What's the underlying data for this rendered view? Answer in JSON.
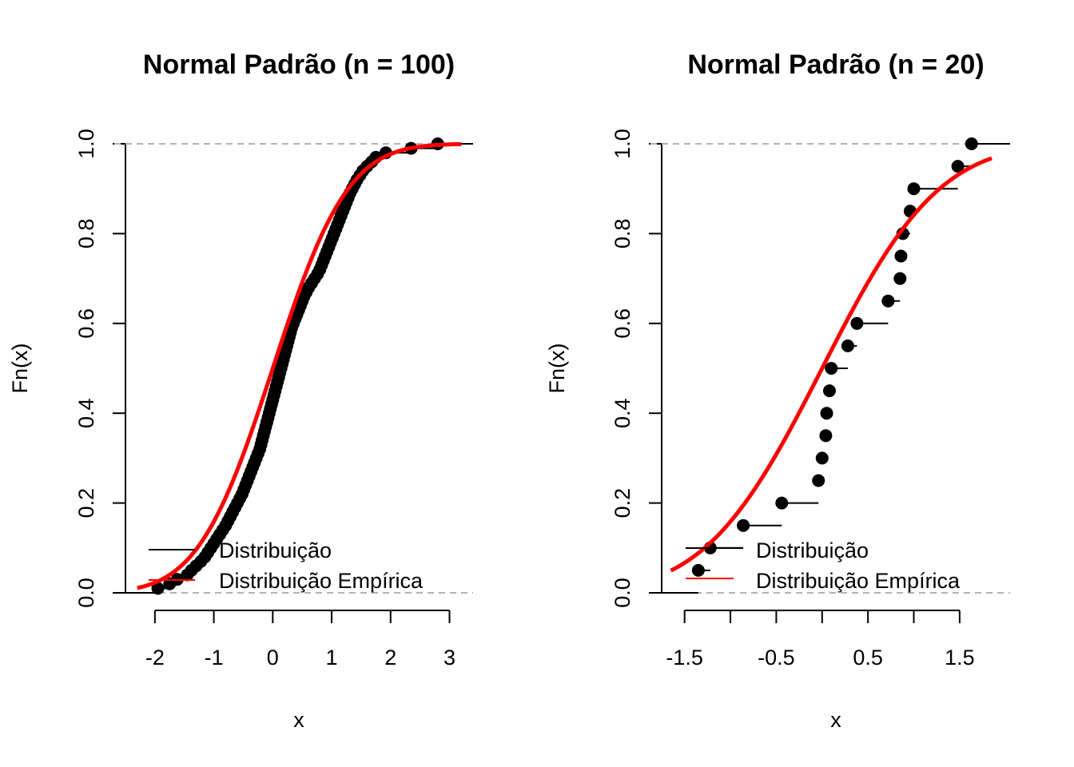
{
  "chart_data": [
    {
      "type": "line",
      "title": "Normal Padrão (n = 100)",
      "xlabel": "x",
      "ylabel": "Fn(x)",
      "xlim": [
        -2.5,
        3.4
      ],
      "ylim": [
        0,
        1
      ],
      "xticks": [
        -2,
        -1,
        0,
        1,
        2,
        3
      ],
      "xtick_labels": [
        "-2",
        "-1",
        "0",
        "1",
        "2",
        "3"
      ],
      "yticks": [
        0,
        0.2,
        0.4,
        0.6,
        0.8,
        1
      ],
      "ytick_labels": [
        "0.0",
        "0.2",
        "0.4",
        "0.6",
        "0.8",
        "1.0"
      ],
      "reference_lines": [
        0,
        1
      ],
      "legend": {
        "position": "bottom-left",
        "entries": [
          {
            "label": "Distribuição",
            "color": "#000000"
          },
          {
            "label": "Distribuição Empírica",
            "color": "#ff0000"
          }
        ]
      },
      "series": [
        {
          "name": "Distribuição",
          "type": "ecdf-step",
          "color": "#000000",
          "x": [
            -1.95,
            -1.75,
            -1.62,
            -1.45,
            -1.38,
            -1.3,
            -1.22,
            -1.15,
            -1.1,
            -1.05,
            -1.0,
            -0.95,
            -0.9,
            -0.85,
            -0.8,
            -0.76,
            -0.72,
            -0.68,
            -0.64,
            -0.6,
            -0.56,
            -0.52,
            -0.49,
            -0.46,
            -0.43,
            -0.4,
            -0.37,
            -0.34,
            -0.31,
            -0.28,
            -0.25,
            -0.22,
            -0.2,
            -0.18,
            -0.16,
            -0.14,
            -0.12,
            -0.1,
            -0.08,
            -0.06,
            -0.04,
            -0.02,
            0.0,
            0.02,
            0.04,
            0.06,
            0.08,
            0.1,
            0.12,
            0.14,
            0.16,
            0.18,
            0.2,
            0.22,
            0.24,
            0.26,
            0.28,
            0.3,
            0.32,
            0.35,
            0.38,
            0.41,
            0.44,
            0.47,
            0.5,
            0.53,
            0.57,
            0.61,
            0.66,
            0.71,
            0.76,
            0.8,
            0.83,
            0.86,
            0.89,
            0.92,
            0.95,
            0.98,
            1.01,
            1.04,
            1.07,
            1.1,
            1.13,
            1.16,
            1.19,
            1.22,
            1.25,
            1.28,
            1.31,
            1.35,
            1.39,
            1.43,
            1.48,
            1.53,
            1.6,
            1.68,
            1.75,
            1.92,
            2.35,
            2.8
          ],
          "y": [
            0.01,
            0.02,
            0.03,
            0.04,
            0.05,
            0.06,
            0.07,
            0.08,
            0.09,
            0.1,
            0.11,
            0.12,
            0.13,
            0.14,
            0.15,
            0.16,
            0.17,
            0.18,
            0.19,
            0.2,
            0.21,
            0.22,
            0.23,
            0.24,
            0.25,
            0.26,
            0.27,
            0.28,
            0.29,
            0.3,
            0.31,
            0.32,
            0.33,
            0.34,
            0.35,
            0.36,
            0.37,
            0.38,
            0.39,
            0.4,
            0.41,
            0.42,
            0.43,
            0.44,
            0.45,
            0.46,
            0.47,
            0.48,
            0.49,
            0.5,
            0.51,
            0.52,
            0.53,
            0.54,
            0.55,
            0.56,
            0.57,
            0.58,
            0.59,
            0.6,
            0.61,
            0.62,
            0.63,
            0.64,
            0.65,
            0.66,
            0.67,
            0.68,
            0.69,
            0.7,
            0.71,
            0.72,
            0.73,
            0.74,
            0.75,
            0.76,
            0.77,
            0.78,
            0.79,
            0.8,
            0.81,
            0.82,
            0.83,
            0.84,
            0.85,
            0.86,
            0.87,
            0.88,
            0.89,
            0.9,
            0.91,
            0.92,
            0.93,
            0.94,
            0.95,
            0.96,
            0.97,
            0.98,
            0.99,
            1.0
          ]
        },
        {
          "name": "Distribuição Empírica",
          "type": "normal-cdf",
          "color": "#ff0000",
          "mean": 0,
          "sd": 1,
          "x_range": [
            -2.3,
            3.2
          ]
        }
      ]
    },
    {
      "type": "line",
      "title": "Normal Padrão (n = 20)",
      "xlabel": "x",
      "ylabel": "Fn(x)",
      "xlim": [
        -1.75,
        2.05
      ],
      "ylim": [
        0,
        1
      ],
      "xticks": [
        -1.5,
        -1.0,
        -0.5,
        0.0,
        0.5,
        1.0,
        1.5
      ],
      "xtick_labels": [
        "-1.5",
        "",
        "-0.5",
        "",
        "0.5",
        "",
        "1.5"
      ],
      "yticks": [
        0,
        0.2,
        0.4,
        0.6,
        0.8,
        1
      ],
      "ytick_labels": [
        "0.0",
        "0.2",
        "0.4",
        "0.6",
        "0.8",
        "1.0"
      ],
      "reference_lines": [
        0,
        1
      ],
      "legend": {
        "position": "bottom-left",
        "entries": [
          {
            "label": "Distribuição",
            "color": "#000000"
          },
          {
            "label": "Distribuição Empírica",
            "color": "#ff0000"
          }
        ]
      },
      "series": [
        {
          "name": "Distribuição",
          "type": "ecdf-step",
          "color": "#000000",
          "x": [
            -1.35,
            -1.22,
            -0.86,
            -0.44,
            -0.04,
            0.0,
            0.04,
            0.05,
            0.08,
            0.1,
            0.28,
            0.38,
            0.72,
            0.85,
            0.86,
            0.88,
            0.96,
            1.0,
            1.48,
            1.63
          ],
          "y": [
            0.05,
            0.1,
            0.15,
            0.2,
            0.25,
            0.3,
            0.35,
            0.4,
            0.45,
            0.5,
            0.55,
            0.6,
            0.65,
            0.7,
            0.75,
            0.8,
            0.85,
            0.9,
            0.95,
            1.0
          ]
        },
        {
          "name": "Distribuição Empírica",
          "type": "normal-cdf",
          "color": "#ff0000",
          "mean": 0,
          "sd": 1,
          "x_range": [
            -1.65,
            1.85
          ]
        }
      ]
    }
  ]
}
